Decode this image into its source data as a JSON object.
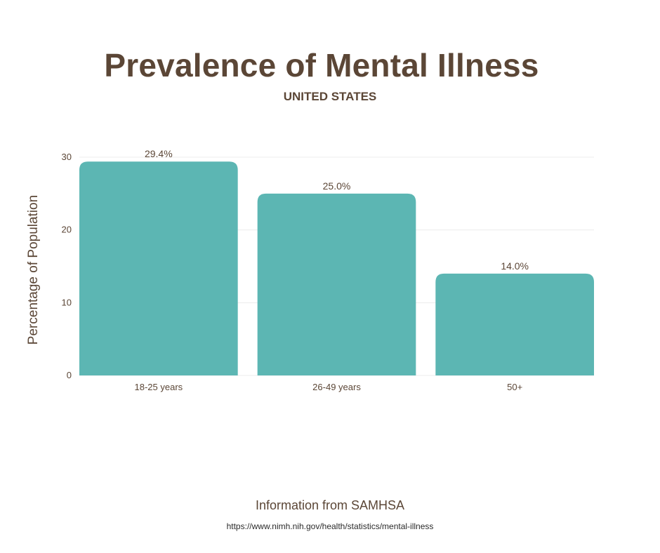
{
  "header": {
    "title": "Prevalence of Mental Illness",
    "subtitle": "UNITED STATES"
  },
  "footer": {
    "source": "Information from SAMHSA",
    "url": "https://www.nimh.nih.gov/health/statistics/mental-illness"
  },
  "colors": {
    "bar": "#5cb6b3",
    "text": "#5b4636",
    "grid": "#ececec"
  },
  "chart_data": {
    "type": "bar",
    "title": "Prevalence of Mental Illness",
    "subtitle": "UNITED STATES",
    "categories": [
      "18-25 years",
      "26-49 years",
      "50+"
    ],
    "values": [
      29.4,
      25.0,
      14.0
    ],
    "data_labels": [
      "29.4%",
      "25.0%",
      "14.0%"
    ],
    "xlabel": "",
    "ylabel": "Percentage of Population",
    "ylim": [
      0,
      30
    ],
    "yticks": [
      0,
      10,
      20,
      30
    ],
    "grid": true,
    "legend": "none"
  }
}
